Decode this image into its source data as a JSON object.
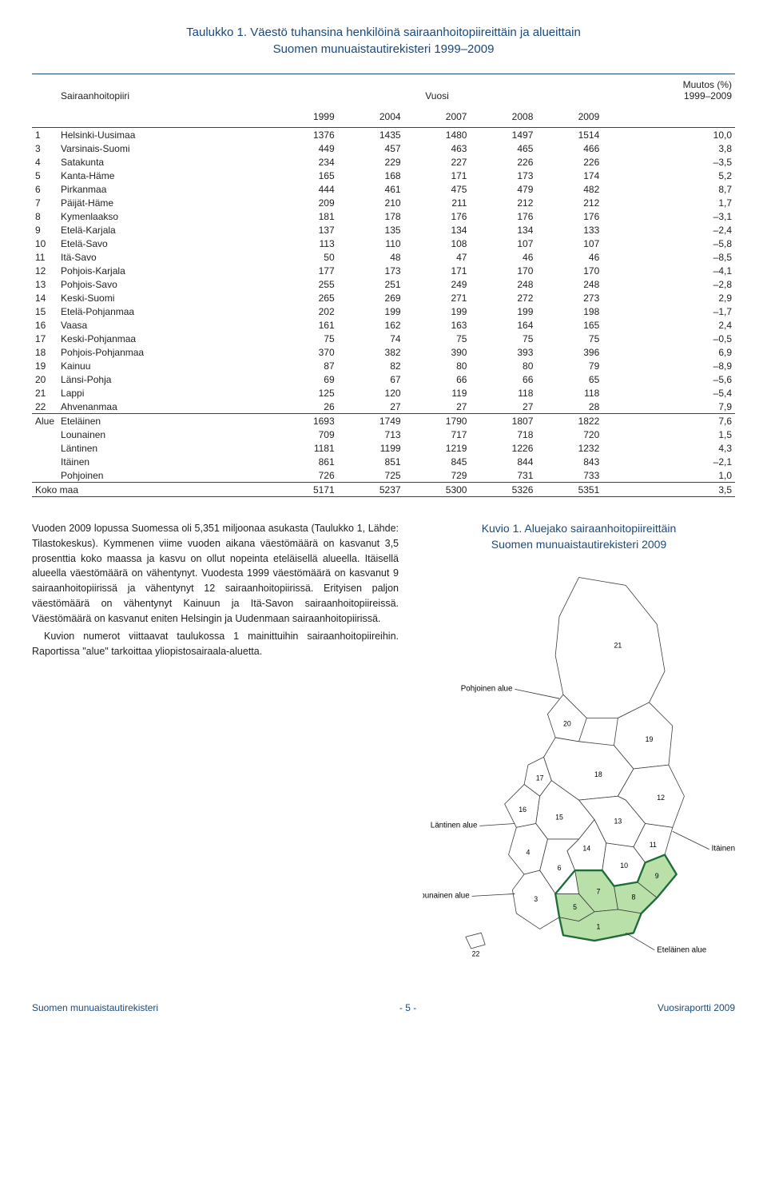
{
  "table": {
    "title_line1": "Taulukko 1. Väestö tuhansina henkilöinä sairaanhoitopiireittäin ja alueittain",
    "title_line2": "Suomen munuaistautirekisteri 1999–2009",
    "header_region": "Sairaanhoitopiiri",
    "header_year": "Vuosi",
    "header_change": "Muutos (%)",
    "header_change_sub": "1999–2009",
    "years": [
      "1999",
      "2004",
      "2007",
      "2008",
      "2009"
    ],
    "rows": [
      {
        "idx": "1",
        "name": "Helsinki-Uusimaa",
        "v": [
          1376,
          1435,
          1480,
          1497,
          1514
        ],
        "chg": "10,0"
      },
      {
        "idx": "3",
        "name": "Varsinais-Suomi",
        "v": [
          449,
          457,
          463,
          465,
          466
        ],
        "chg": "3,8"
      },
      {
        "idx": "4",
        "name": "Satakunta",
        "v": [
          234,
          229,
          227,
          226,
          226
        ],
        "chg": "–3,5"
      },
      {
        "idx": "5",
        "name": "Kanta-Häme",
        "v": [
          165,
          168,
          171,
          173,
          174
        ],
        "chg": "5,2"
      },
      {
        "idx": "6",
        "name": "Pirkanmaa",
        "v": [
          444,
          461,
          475,
          479,
          482
        ],
        "chg": "8,7"
      },
      {
        "idx": "7",
        "name": "Päijät-Häme",
        "v": [
          209,
          210,
          211,
          212,
          212
        ],
        "chg": "1,7"
      },
      {
        "idx": "8",
        "name": "Kymenlaakso",
        "v": [
          181,
          178,
          176,
          176,
          176
        ],
        "chg": "–3,1"
      },
      {
        "idx": "9",
        "name": "Etelä-Karjala",
        "v": [
          137,
          135,
          134,
          134,
          133
        ],
        "chg": "–2,4"
      },
      {
        "idx": "10",
        "name": "Etelä-Savo",
        "v": [
          113,
          110,
          108,
          107,
          107
        ],
        "chg": "–5,8"
      },
      {
        "idx": "11",
        "name": "Itä-Savo",
        "v": [
          50,
          48,
          47,
          46,
          46
        ],
        "chg": "–8,5"
      },
      {
        "idx": "12",
        "name": "Pohjois-Karjala",
        "v": [
          177,
          173,
          171,
          170,
          170
        ],
        "chg": "–4,1"
      },
      {
        "idx": "13",
        "name": "Pohjois-Savo",
        "v": [
          255,
          251,
          249,
          248,
          248
        ],
        "chg": "–2,8"
      },
      {
        "idx": "14",
        "name": "Keski-Suomi",
        "v": [
          265,
          269,
          271,
          272,
          273
        ],
        "chg": "2,9"
      },
      {
        "idx": "15",
        "name": "Etelä-Pohjanmaa",
        "v": [
          202,
          199,
          199,
          199,
          198
        ],
        "chg": "–1,7"
      },
      {
        "idx": "16",
        "name": "Vaasa",
        "v": [
          161,
          162,
          163,
          164,
          165
        ],
        "chg": "2,4"
      },
      {
        "idx": "17",
        "name": "Keski-Pohjanmaa",
        "v": [
          75,
          74,
          75,
          75,
          75
        ],
        "chg": "–0,5"
      },
      {
        "idx": "18",
        "name": "Pohjois-Pohjanmaa",
        "v": [
          370,
          382,
          390,
          393,
          396
        ],
        "chg": "6,9"
      },
      {
        "idx": "19",
        "name": "Kainuu",
        "v": [
          87,
          82,
          80,
          80,
          79
        ],
        "chg": "–8,9"
      },
      {
        "idx": "20",
        "name": "Länsi-Pohja",
        "v": [
          69,
          67,
          66,
          66,
          65
        ],
        "chg": "–5,6"
      },
      {
        "idx": "21",
        "name": "Lappi",
        "v": [
          125,
          120,
          119,
          118,
          118
        ],
        "chg": "–5,4"
      },
      {
        "idx": "22",
        "name": "Ahvenanmaa",
        "v": [
          26,
          27,
          27,
          27,
          28
        ],
        "chg": "7,9"
      }
    ],
    "alue_label": "Alue",
    "alue_rows": [
      {
        "idx": "",
        "name": "Eteläinen",
        "v": [
          1693,
          1749,
          1790,
          1807,
          1822
        ],
        "chg": "7,6"
      },
      {
        "idx": "",
        "name": "Lounainen",
        "v": [
          709,
          713,
          717,
          718,
          720
        ],
        "chg": "1,5"
      },
      {
        "idx": "",
        "name": "Läntinen",
        "v": [
          1181,
          1199,
          1219,
          1226,
          1232
        ],
        "chg": "4,3"
      },
      {
        "idx": "",
        "name": "Itäinen",
        "v": [
          861,
          851,
          845,
          844,
          843
        ],
        "chg": "–2,1"
      },
      {
        "idx": "",
        "name": "Pohjoinen",
        "v": [
          726,
          725,
          729,
          731,
          733
        ],
        "chg": "1,0"
      }
    ],
    "total_label": "Koko maa",
    "total": {
      "v": [
        5171,
        5237,
        5300,
        5326,
        5351
      ],
      "chg": "3,5"
    }
  },
  "body_text": {
    "p1": "Vuoden 2009 lopussa Suomessa oli 5,351 miljoonaa asukasta (Taulukko 1, Lähde: Tilastokeskus). Kymmenen viime vuoden aikana väestömäärä on kasvanut 3,5 prosenttia koko maassa ja kasvu on ollut nopeinta eteläisellä alueella. Itäisellä alueella väestömäärä on vähentynyt. Vuodesta 1999 väestömäärä on kasvanut 9 sairaanhoitopiirissä ja vähentynyt 12 sairaanhoitopiirissä. Erityisen paljon väestömäärä on vähentynyt Kainuun ja Itä-Savon sairaanhoitopiireissä. Väestömäärä on kasvanut eniten Helsingin ja Uudenmaan sairaanhoitopiirissä.",
    "p2": "Kuvion numerot viittaavat taulukossa 1 mainittuihin sairaanhoitopiireihin. Raportissa \"alue\" tarkoittaa yliopistosairaala-aluetta."
  },
  "figure": {
    "title_line1": "Kuvio 1. Aluejako sairaanhoitopiireittäin",
    "title_line2": "Suomen munuaistautirekisteri 2009",
    "labels": {
      "pohjoinen": "Pohjoinen alue",
      "lantinen": "Läntinen alue",
      "lounainen": "Lounainen alue",
      "itainen": "Itäinen alue",
      "etelainen": "Eteläinen alue"
    },
    "district_numbers": [
      "1",
      "3",
      "4",
      "5",
      "6",
      "7",
      "8",
      "9",
      "10",
      "11",
      "12",
      "13",
      "14",
      "15",
      "16",
      "17",
      "18",
      "19",
      "20",
      "21",
      "22"
    ]
  },
  "map_style": {
    "stroke": "#3a3a3a",
    "stroke_width": 0.8,
    "fill_default": "#ffffff",
    "fill_etelainen": "#b8e0a8",
    "thick_stroke": "#1f6b3a",
    "thick_width": 2.4,
    "label_font": 10,
    "number_font": 9
  },
  "footer": {
    "left": "Suomen munuaistautirekisteri",
    "center": "- 5 -",
    "right": "Vuosiraportti 2009"
  },
  "colors": {
    "heading": "#1a4a7a",
    "rule": "#1a4a7a",
    "text": "#222222"
  }
}
